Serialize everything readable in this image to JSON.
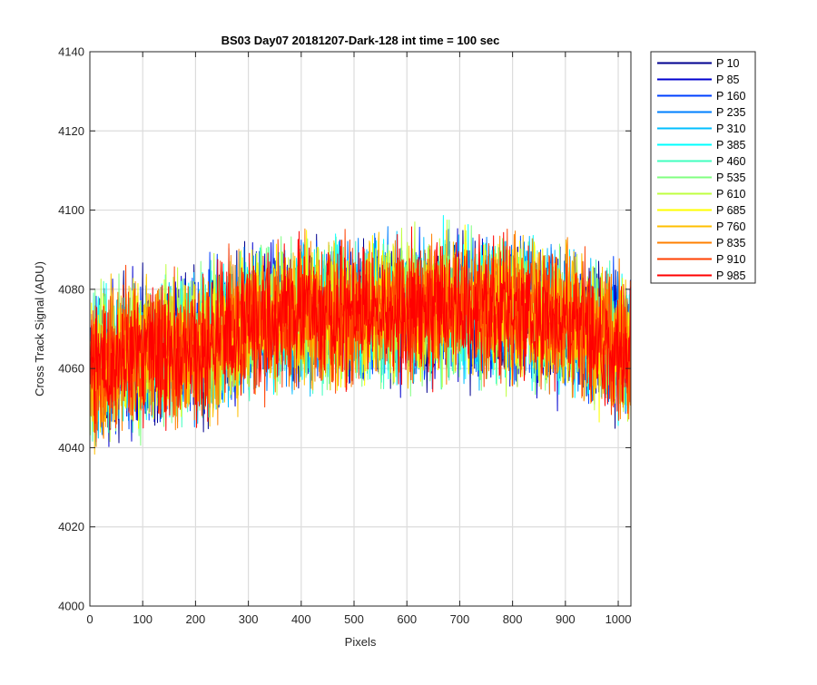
{
  "chart_data": {
    "type": "line",
    "title": "BS03 Day07 20181207-Dark-128 int time = 100 sec",
    "xlabel": "Pixels",
    "ylabel": "Cross Track Signal (ADU)",
    "xlim": [
      0,
      1024
    ],
    "ylim": [
      4000,
      4140
    ],
    "xticks": [
      0,
      100,
      200,
      300,
      400,
      500,
      600,
      700,
      800,
      900,
      1000
    ],
    "yticks": [
      4000,
      4020,
      4040,
      4060,
      4080,
      4100,
      4120,
      4140
    ],
    "grid": true,
    "legend_position": "outside-right",
    "profile": {
      "x": [
        0,
        50,
        100,
        200,
        300,
        400,
        500,
        600,
        700,
        800,
        900,
        950,
        1000,
        1024
      ],
      "mean": [
        4058,
        4063,
        4064,
        4065,
        4072,
        4074,
        4074,
        4075,
        4075,
        4075,
        4072,
        4069,
        4066,
        4064
      ],
      "noise_amplitude": 10
    },
    "series": [
      {
        "name": "P 10",
        "color": "#00008f"
      },
      {
        "name": "P 85",
        "color": "#0000cf"
      },
      {
        "name": "P 160",
        "color": "#0040ff"
      },
      {
        "name": "P 235",
        "color": "#0080ff"
      },
      {
        "name": "P 310",
        "color": "#00bfff"
      },
      {
        "name": "P 385",
        "color": "#00ffff"
      },
      {
        "name": "P 460",
        "color": "#40ffbf"
      },
      {
        "name": "P 535",
        "color": "#80ff80"
      },
      {
        "name": "P 610",
        "color": "#bfff40"
      },
      {
        "name": "P 685",
        "color": "#ffff00"
      },
      {
        "name": "P 760",
        "color": "#ffbf00"
      },
      {
        "name": "P 835",
        "color": "#ff8000"
      },
      {
        "name": "P 910",
        "color": "#ff4000"
      },
      {
        "name": "P 985",
        "color": "#ff0000"
      }
    ]
  }
}
